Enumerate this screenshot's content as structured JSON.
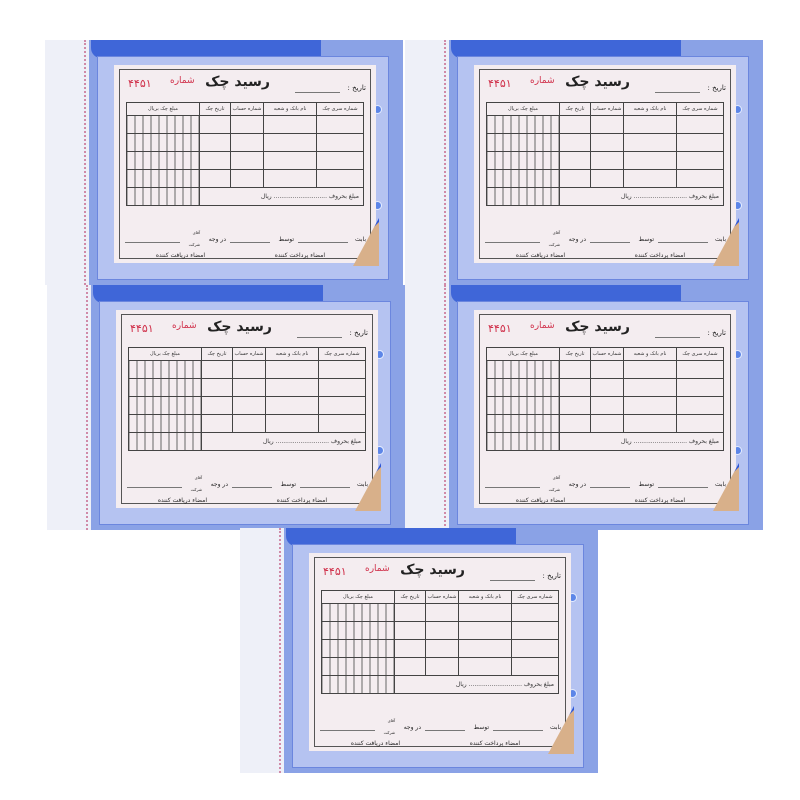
{
  "form": {
    "title": "رسید چک",
    "number_label": "شماره",
    "number": "۴۴۵۱",
    "date_label": "تاریخ :",
    "columns": [
      "شماره سری چک",
      "نام بانک و شعبه",
      "شماره حساب",
      "تاریخ چک",
      "مبلغ چک بریال"
    ],
    "amount_words_label": "مبلغ بحروف",
    "rial_label": "ریال",
    "for_label": "بابت",
    "by_label": "توسط",
    "payee_label": "در وجه",
    "mr_label": "آقای",
    "company_label": "شرکت",
    "payer_signature": "امضاء پرداخت کننده",
    "receiver_signature": "امضاء دریافت کننده"
  },
  "colors": {
    "backing": "#8aa2e6",
    "bar": "#3f66d8",
    "number": "#d0304a"
  }
}
